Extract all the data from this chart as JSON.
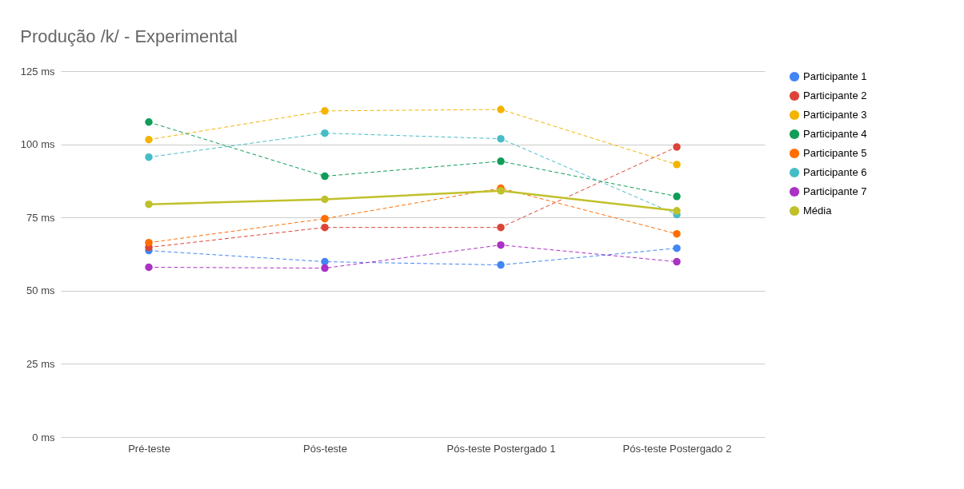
{
  "chart_data": {
    "type": "line",
    "title": "Produção /k/ - Experimental",
    "categories": [
      "Pré-teste",
      "Pós-teste",
      "Pós-teste Postergado 1",
      "Pós-teste Postergado 2"
    ],
    "series": [
      {
        "name": "Participante 1",
        "color": "#4285f4",
        "line_style": "dashed",
        "values": [
          63.7,
          59.9,
          58.8,
          64.5
        ]
      },
      {
        "name": "Participante 2",
        "color": "#db4437",
        "line_style": "dashed",
        "values": [
          64.8,
          71.6,
          71.6,
          99.1
        ]
      },
      {
        "name": "Participante 3",
        "color": "#f4b400",
        "line_style": "dashed",
        "values": [
          101.6,
          111.4,
          111.9,
          93.1
        ]
      },
      {
        "name": "Participante 4",
        "color": "#0f9d58",
        "line_style": "dashed",
        "values": [
          107.6,
          89.1,
          94.2,
          82.2
        ]
      },
      {
        "name": "Participante 5",
        "color": "#ff6d00",
        "line_style": "dashed",
        "values": [
          66.4,
          74.6,
          85.0,
          69.4
        ]
      },
      {
        "name": "Participante 6",
        "color": "#46bdc6",
        "line_style": "dashed",
        "values": [
          95.6,
          103.8,
          101.9,
          76.0
        ]
      },
      {
        "name": "Participante 7",
        "color": "#ab30c4",
        "line_style": "dashed",
        "values": [
          58.0,
          57.7,
          65.6,
          59.9
        ]
      },
      {
        "name": "Média",
        "color": "#c0c12a",
        "line_style": "solid",
        "values": [
          79.5,
          81.2,
          84.1,
          77.3
        ]
      }
    ],
    "ylim": [
      0,
      125
    ],
    "yticks": [
      {
        "value": 0,
        "label": "0 ms"
      },
      {
        "value": 25,
        "label": "25 ms"
      },
      {
        "value": 50,
        "label": "50 ms"
      },
      {
        "value": 75,
        "label": "75 ms"
      },
      {
        "value": 100,
        "label": "100 ms"
      },
      {
        "value": 125,
        "label": "125 ms"
      }
    ],
    "grid": "y",
    "legend": "right",
    "marker": "circle"
  }
}
